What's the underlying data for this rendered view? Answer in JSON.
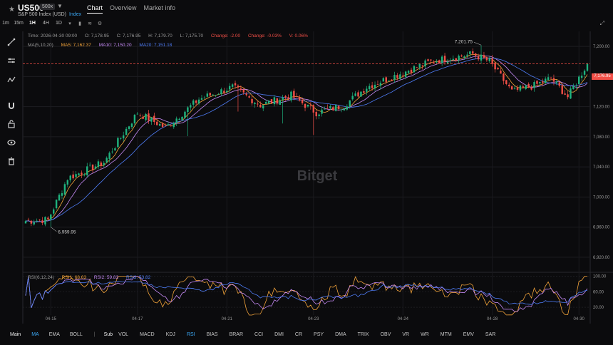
{
  "header": {
    "symbol": "US500",
    "leverage": "500x",
    "subtitle": "S&P 500 Index (USD)",
    "market_type": "Index",
    "tabs": [
      {
        "label": "Chart",
        "active": true
      },
      {
        "label": "Overview",
        "active": false
      },
      {
        "label": "Market info",
        "active": false
      }
    ]
  },
  "toolbar": {
    "timeframes": [
      {
        "label": "1m",
        "active": false
      },
      {
        "label": "15m",
        "active": false
      },
      {
        "label": "1H",
        "active": true
      },
      {
        "label": "4H",
        "active": false
      },
      {
        "label": "1D",
        "active": false
      }
    ]
  },
  "ohlc": {
    "time": "Time: 2026-04-30 09:00",
    "open": "O: 7,178.95",
    "close": "C: 7,176.95",
    "high": "H: 7,179.70",
    "low": "L: 7,175.70",
    "change": "Change: -2.00",
    "change_pct": "Change: -0.03%",
    "volatility": "V: 0.06%"
  },
  "ma_legend": {
    "label": "MA(5,10,20)",
    "ma5": "MA5: 7,162.37",
    "ma10": "MA10: 7,150.20",
    "ma20": "MA20: 7,151.18"
  },
  "rsi_legend": {
    "label": "RSI(6,12,24)",
    "rsi1": "RSI1: 68.63",
    "rsi2": "RSI2: 59.83",
    "rsi3": "RSI3: 53.82"
  },
  "price_axis": [
    "7,200.00",
    "7,160.00",
    "7,120.00",
    "7,080.00",
    "7,040.00",
    "7,000.00",
    "6,960.00",
    "6,920.00"
  ],
  "rsi_axis": [
    "100.00",
    "60.00",
    "20.00"
  ],
  "date_axis": [
    "04-15",
    "04-17",
    "04-21",
    "04-23",
    "04-24",
    "04-28",
    "04-30"
  ],
  "high_marker": "7,201.75",
  "low_marker": "6,959.95",
  "current_price": "7,176.95",
  "watermark": "Bitget",
  "bottom_indicators": {
    "main_label": "Main",
    "main": [
      {
        "label": "MA",
        "active": true
      },
      {
        "label": "EMA",
        "active": false
      },
      {
        "label": "BOLL",
        "active": false
      }
    ],
    "sub_label": "Sub",
    "sub": [
      {
        "label": "VOL",
        "active": false
      },
      {
        "label": "MACD",
        "active": false
      },
      {
        "label": "KDJ",
        "active": false
      },
      {
        "label": "RSI",
        "active": true
      },
      {
        "label": "BIAS",
        "active": false
      },
      {
        "label": "BRAR",
        "active": false
      },
      {
        "label": "CCI",
        "active": false
      },
      {
        "label": "DMI",
        "active": false
      },
      {
        "label": "CR",
        "active": false
      },
      {
        "label": "PSY",
        "active": false
      },
      {
        "label": "DMA",
        "active": false
      },
      {
        "label": "TRIX",
        "active": false
      },
      {
        "label": "OBV",
        "active": false
      },
      {
        "label": "VR",
        "active": false
      },
      {
        "label": "WR",
        "active": false
      },
      {
        "label": "MTM",
        "active": false
      },
      {
        "label": "EMV",
        "active": false
      },
      {
        "label": "SAR",
        "active": false
      }
    ]
  },
  "colors": {
    "up": "#1fb37e",
    "down": "#f24f47",
    "ma5": "#f2a33a",
    "ma10": "#c58af5",
    "ma20": "#4f7df7",
    "rsi1": "#f2a33a",
    "rsi2": "#c58af5",
    "rsi3": "#4f7df7",
    "active": "#3aa6f2"
  },
  "chart_data": {
    "type": "candlestick",
    "interval": "1H",
    "price_range": [
      6900,
      7220
    ],
    "rsi_range": [
      0,
      110
    ],
    "date_ticks": [
      {
        "date": "04-15",
        "index": 9
      },
      {
        "date": "04-17",
        "index": 40
      },
      {
        "date": "04-21",
        "index": 72
      },
      {
        "date": "04-23",
        "index": 103
      },
      {
        "date": "04-24",
        "index": 135
      },
      {
        "date": "04-28",
        "index": 167
      },
      {
        "date": "04-30",
        "index": 198
      }
    ],
    "close_path_anchors": [
      {
        "index": 0,
        "close": 6968
      },
      {
        "index": 8,
        "close": 6970
      },
      {
        "index": 15,
        "close": 7025
      },
      {
        "index": 28,
        "close": 7046
      },
      {
        "index": 40,
        "close": 7112
      },
      {
        "index": 50,
        "close": 7092
      },
      {
        "index": 62,
        "close": 7130
      },
      {
        "index": 74,
        "close": 7146
      },
      {
        "index": 84,
        "close": 7122
      },
      {
        "index": 95,
        "close": 7135
      },
      {
        "index": 104,
        "close": 7112
      },
      {
        "index": 114,
        "close": 7122
      },
      {
        "index": 122,
        "close": 7146
      },
      {
        "index": 130,
        "close": 7158
      },
      {
        "index": 145,
        "close": 7180
      },
      {
        "index": 160,
        "close": 7190
      },
      {
        "index": 166,
        "close": 7180
      },
      {
        "index": 174,
        "close": 7140
      },
      {
        "index": 182,
        "close": 7148
      },
      {
        "index": 188,
        "close": 7158
      },
      {
        "index": 194,
        "close": 7133
      },
      {
        "index": 201,
        "close": 7177
      }
    ],
    "session_high": {
      "index": 163,
      "price": 7201.75
    },
    "session_low": {
      "index": 9,
      "price": 6959.95
    },
    "last_close": 7176.95
  }
}
